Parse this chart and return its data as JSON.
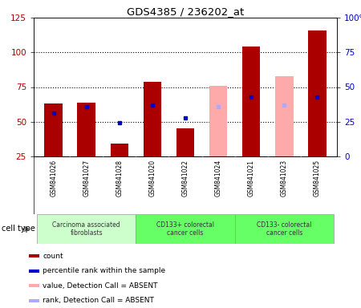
{
  "title": "GDS4385 / 236202_at",
  "samples": [
    "GSM841026",
    "GSM841027",
    "GSM841028",
    "GSM841020",
    "GSM841022",
    "GSM841024",
    "GSM841021",
    "GSM841023",
    "GSM841025"
  ],
  "count_values": [
    63,
    64,
    34,
    79,
    45,
    null,
    104,
    null,
    116
  ],
  "count_absent_values": [
    null,
    null,
    null,
    null,
    null,
    76,
    null,
    83,
    null
  ],
  "percentile_values": [
    56,
    61,
    49,
    62,
    53,
    null,
    68,
    null,
    68
  ],
  "percentile_absent_values": [
    null,
    null,
    null,
    null,
    null,
    61,
    null,
    62,
    null
  ],
  "absent_mask": [
    false,
    false,
    false,
    false,
    false,
    true,
    false,
    true,
    false
  ],
  "count_color": "#aa0000",
  "count_absent_color": "#ffaaaa",
  "rank_color": "#0000cc",
  "rank_absent_color": "#aaaaff",
  "cell_groups": [
    {
      "start": 0,
      "end": 3,
      "label": "Carcinoma associated\nfibroblasts",
      "color": "#ccffcc"
    },
    {
      "start": 3,
      "end": 6,
      "label": "CD133+ colorectal\ncancer cells",
      "color": "#66ff66"
    },
    {
      "start": 6,
      "end": 9,
      "label": "CD133- colorectal\ncancer cells",
      "color": "#66ff66"
    }
  ],
  "legend_items": [
    {
      "color": "#aa0000",
      "label": "count"
    },
    {
      "color": "#0000cc",
      "label": "percentile rank within the sample"
    },
    {
      "color": "#ffaaaa",
      "label": "value, Detection Call = ABSENT"
    },
    {
      "color": "#aaaaff",
      "label": "rank, Detection Call = ABSENT"
    }
  ]
}
